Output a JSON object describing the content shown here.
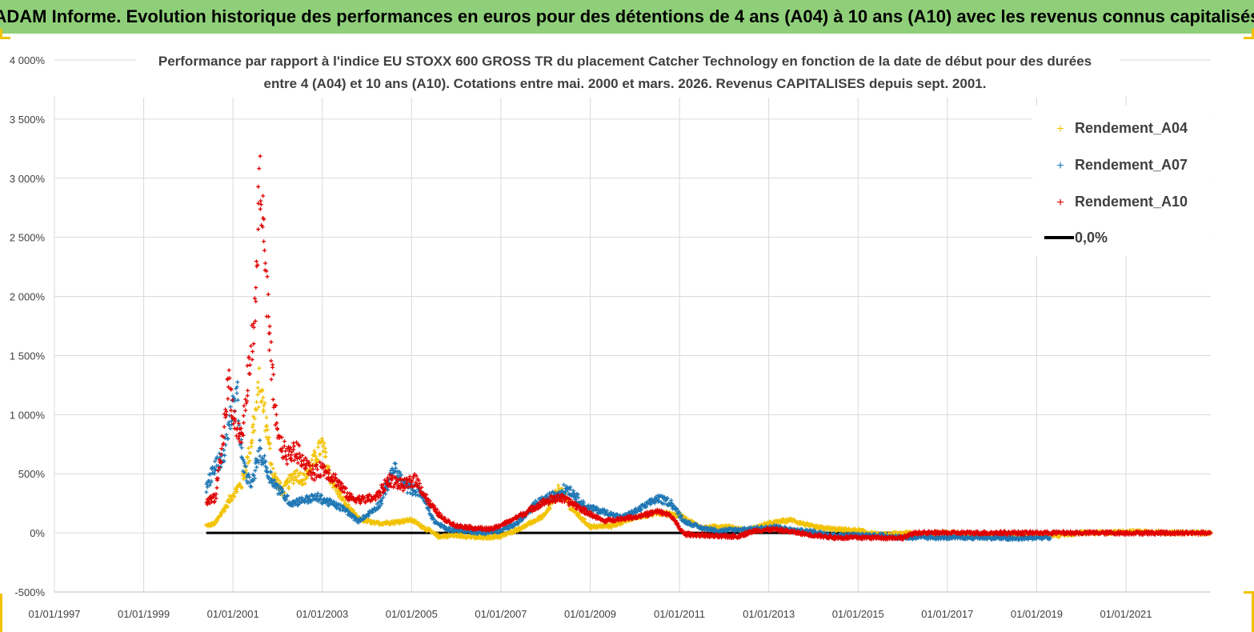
{
  "header": {
    "title": "ADAM Informe. Evolution historique des performances en euros pour des détentions de 4 ans (A04) à 10 ans (A10) avec les revenus connus capitalisés"
  },
  "chart_data": {
    "type": "scatter",
    "title_lines": [
      "Performance par rapport à l'indice EU STOXX 600 GROSS TR  du placement Catcher Technology  en fonction de la date de début pour des durées",
      "entre 4 (A04) et 10 ans (A10). Cotations entre mai. 2000 et mars. 2026. Revenus CAPITALISES depuis sept. 2001."
    ],
    "xlabel": "",
    "ylabel": "",
    "ylim": [
      -500,
      4000
    ],
    "y_ticks": [
      -500,
      0,
      500,
      1000,
      1500,
      2000,
      2500,
      3000,
      3500,
      4000
    ],
    "y_tick_labels": [
      "-500%",
      "0%",
      "500%",
      "1 000%",
      "1 500%",
      "2 000%",
      "2 500%",
      "3 000%",
      "3 500%",
      "4 000%"
    ],
    "x_tick_labels": [
      "01/01/1997",
      "01/01/1999",
      "01/01/2001",
      "01/01/2003",
      "01/01/2005",
      "01/01/2007",
      "01/01/2009",
      "01/01/2011",
      "01/01/2013",
      "01/01/2015",
      "01/01/2017",
      "01/01/2019",
      "01/01/2021"
    ],
    "xlim_years": [
      1997.0,
      2022.9
    ],
    "grid": true,
    "legend_position": "top-right",
    "legend": [
      {
        "label": "Rendement_A04",
        "color": "#f2c200",
        "marker": "+"
      },
      {
        "label": "Rendement_A07",
        "color": "#1f77b4",
        "marker": "+"
      },
      {
        "label": "Rendement_A10",
        "color": "#e00000",
        "marker": "+"
      },
      {
        "label": "0,0%",
        "color": "#000000",
        "marker": "line"
      }
    ],
    "series": [
      {
        "name": "Rendement_A04",
        "color": "#f2c200",
        "x_range": [
          2000.4,
          2022.9
        ],
        "points": [
          [
            2000.4,
            60
          ],
          [
            2000.6,
            80
          ],
          [
            2000.8,
            200
          ],
          [
            2001.0,
            330
          ],
          [
            2001.2,
            420
          ],
          [
            2001.35,
            650
          ],
          [
            2001.5,
            1000
          ],
          [
            2001.6,
            1250
          ],
          [
            2001.75,
            900
          ],
          [
            2001.9,
            500
          ],
          [
            2002.1,
            350
          ],
          [
            2002.4,
            500
          ],
          [
            2002.6,
            450
          ],
          [
            2002.8,
            600
          ],
          [
            2003.0,
            750
          ],
          [
            2003.2,
            450
          ],
          [
            2003.5,
            250
          ],
          [
            2003.8,
            120
          ],
          [
            2004.2,
            80
          ],
          [
            2004.6,
            90
          ],
          [
            2005.0,
            110
          ],
          [
            2005.3,
            40
          ],
          [
            2005.6,
            -30
          ],
          [
            2006.0,
            -20
          ],
          [
            2006.5,
            -40
          ],
          [
            2007.0,
            -30
          ],
          [
            2007.5,
            50
          ],
          [
            2008.0,
            150
          ],
          [
            2008.3,
            380
          ],
          [
            2008.6,
            200
          ],
          [
            2009.0,
            50
          ],
          [
            2009.5,
            60
          ],
          [
            2010.0,
            130
          ],
          [
            2010.5,
            170
          ],
          [
            2011.0,
            150
          ],
          [
            2011.5,
            40
          ],
          [
            2012.0,
            60
          ],
          [
            2012.5,
            20
          ],
          [
            2013.0,
            80
          ],
          [
            2013.5,
            110
          ],
          [
            2014.0,
            50
          ],
          [
            2014.5,
            30
          ],
          [
            2015.0,
            20
          ],
          [
            2015.5,
            -20
          ],
          [
            2016.0,
            0
          ],
          [
            2016.5,
            -10
          ],
          [
            2017.0,
            0
          ],
          [
            2017.5,
            -20
          ],
          [
            2018.0,
            -20
          ],
          [
            2018.5,
            -10
          ],
          [
            2019.0,
            -10
          ],
          [
            2019.5,
            -20
          ],
          [
            2020.0,
            0
          ],
          [
            2020.5,
            0
          ],
          [
            2021.0,
            10
          ],
          [
            2021.5,
            10
          ],
          [
            2022.0,
            0
          ],
          [
            2022.5,
            0
          ],
          [
            2022.9,
            0
          ]
        ]
      },
      {
        "name": "Rendement_A07",
        "color": "#1f77b4",
        "x_range": [
          2000.4,
          2019.3
        ],
        "points": [
          [
            2000.4,
            380
          ],
          [
            2000.6,
            560
          ],
          [
            2000.8,
            650
          ],
          [
            2000.95,
            1000
          ],
          [
            2001.1,
            1150
          ],
          [
            2001.2,
            600
          ],
          [
            2001.4,
            400
          ],
          [
            2001.6,
            700
          ],
          [
            2001.8,
            500
          ],
          [
            2002.0,
            380
          ],
          [
            2002.3,
            250
          ],
          [
            2002.6,
            280
          ],
          [
            2002.9,
            300
          ],
          [
            2003.2,
            250
          ],
          [
            2003.5,
            200
          ],
          [
            2003.8,
            100
          ],
          [
            2004.0,
            150
          ],
          [
            2004.3,
            250
          ],
          [
            2004.6,
            550
          ],
          [
            2004.9,
            380
          ],
          [
            2005.2,
            350
          ],
          [
            2005.5,
            100
          ],
          [
            2005.8,
            30
          ],
          [
            2006.2,
            20
          ],
          [
            2006.6,
            0
          ],
          [
            2007.0,
            20
          ],
          [
            2007.4,
            90
          ],
          [
            2007.8,
            250
          ],
          [
            2008.2,
            320
          ],
          [
            2008.5,
            380
          ],
          [
            2008.9,
            220
          ],
          [
            2009.3,
            180
          ],
          [
            2009.7,
            130
          ],
          [
            2010.1,
            200
          ],
          [
            2010.5,
            290
          ],
          [
            2010.8,
            260
          ],
          [
            2011.1,
            100
          ],
          [
            2011.5,
            40
          ],
          [
            2011.9,
            20
          ],
          [
            2012.4,
            30
          ],
          [
            2012.8,
            40
          ],
          [
            2013.2,
            50
          ],
          [
            2013.6,
            20
          ],
          [
            2014.0,
            10
          ],
          [
            2014.5,
            -20
          ],
          [
            2015.0,
            -20
          ],
          [
            2015.5,
            -20
          ],
          [
            2016.0,
            -40
          ],
          [
            2016.5,
            -40
          ],
          [
            2017.0,
            -40
          ],
          [
            2017.5,
            -40
          ],
          [
            2018.0,
            -40
          ],
          [
            2018.5,
            -50
          ],
          [
            2019.0,
            -40
          ],
          [
            2019.3,
            -40
          ]
        ]
      },
      {
        "name": "Rendement_A10",
        "color": "#e00000",
        "x_range": [
          2000.4,
          2022.9
        ],
        "points": [
          [
            2000.4,
            250
          ],
          [
            2000.6,
            300
          ],
          [
            2000.75,
            700
          ],
          [
            2000.9,
            1300
          ],
          [
            2001.05,
            900
          ],
          [
            2001.2,
            800
          ],
          [
            2001.35,
            1350
          ],
          [
            2001.5,
            1900
          ],
          [
            2001.6,
            3100
          ],
          [
            2001.7,
            2400
          ],
          [
            2001.8,
            1700
          ],
          [
            2001.9,
            1200
          ],
          [
            2002.0,
            800
          ],
          [
            2002.2,
            650
          ],
          [
            2002.4,
            700
          ],
          [
            2002.6,
            600
          ],
          [
            2002.8,
            500
          ],
          [
            2003.0,
            550
          ],
          [
            2003.3,
            450
          ],
          [
            2003.6,
            300
          ],
          [
            2003.9,
            280
          ],
          [
            2004.2,
            300
          ],
          [
            2004.5,
            450
          ],
          [
            2004.8,
            400
          ],
          [
            2005.1,
            450
          ],
          [
            2005.4,
            250
          ],
          [
            2005.7,
            120
          ],
          [
            2006.0,
            60
          ],
          [
            2006.4,
            40
          ],
          [
            2006.8,
            30
          ],
          [
            2007.2,
            100
          ],
          [
            2007.6,
            180
          ],
          [
            2007.9,
            250
          ],
          [
            2008.3,
            300
          ],
          [
            2008.6,
            250
          ],
          [
            2008.9,
            180
          ],
          [
            2009.3,
            100
          ],
          [
            2009.7,
            120
          ],
          [
            2010.1,
            140
          ],
          [
            2010.5,
            180
          ],
          [
            2010.8,
            150
          ],
          [
            2011.1,
            -10
          ],
          [
            2011.5,
            -20
          ],
          [
            2011.9,
            -30
          ],
          [
            2012.3,
            -30
          ],
          [
            2012.7,
            20
          ],
          [
            2013.1,
            30
          ],
          [
            2013.5,
            10
          ],
          [
            2014.0,
            -20
          ],
          [
            2014.5,
            -40
          ],
          [
            2015.0,
            -40
          ],
          [
            2015.5,
            -40
          ],
          [
            2016.0,
            -40
          ],
          [
            2016.3,
            0
          ],
          [
            2017.0,
            0
          ],
          [
            2018.0,
            0
          ],
          [
            2019.0,
            0
          ],
          [
            2020.0,
            0
          ],
          [
            2021.0,
            0
          ],
          [
            2022.0,
            0
          ],
          [
            2022.9,
            0
          ]
        ]
      }
    ],
    "reference_line": {
      "label": "0,0%",
      "y": 0,
      "x_range": [
        2000.4,
        2022.9
      ],
      "color": "#000000"
    }
  }
}
